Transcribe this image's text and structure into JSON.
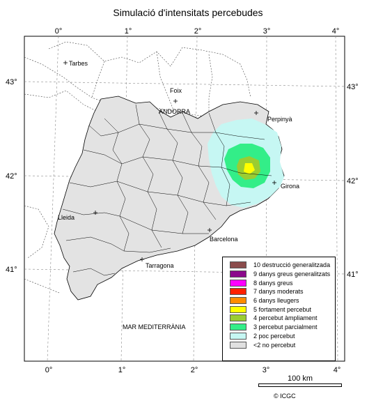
{
  "title": "Simulació d'intensitats percebudes",
  "longitude_ticks_top": [
    "0°",
    "1°",
    "2°",
    "3°",
    "4°"
  ],
  "longitude_ticks_bottom": [
    "0°",
    "1°",
    "2°",
    "3°",
    "4°"
  ],
  "latitude_ticks_left": [
    "43°",
    "42°",
    "41°"
  ],
  "latitude_ticks_right": [
    "43°",
    "42°",
    "41°"
  ],
  "places": {
    "tarbes": "Tarbes",
    "foix": "Foix",
    "andorra": "ANDORRA",
    "perpinya": "Perpinyà",
    "girona": "Girona",
    "lleida": "Lleida",
    "barcelona": "Barcelona",
    "tarragona": "Tarragona",
    "sea": "MAR MEDITERRÀNIA"
  },
  "legend": [
    {
      "label": "10 destrucció generalitzada",
      "color": "#8b4c4c"
    },
    {
      "label": "9 danys greus generalitzats",
      "color": "#8b0a8b"
    },
    {
      "label": "8 danys greus",
      "color": "#ff00ff"
    },
    {
      "label": "7 danys moderats",
      "color": "#ff2000"
    },
    {
      "label": "6 danys lleugers",
      "color": "#ff8c00"
    },
    {
      "label": "5 fortament percebut",
      "color": "#ffff00"
    },
    {
      "label": "4 percebut àmpliament",
      "color": "#9acd32"
    },
    {
      "label": "3 percebut parcialment",
      "color": "#33ee88"
    },
    {
      "label": "2 poc percebut",
      "color": "#c6f7f3"
    },
    {
      "label": "<2 no percebut",
      "color": "#e0e0e0"
    }
  ],
  "scale_label": "100 km",
  "credit": "© ICGC"
}
